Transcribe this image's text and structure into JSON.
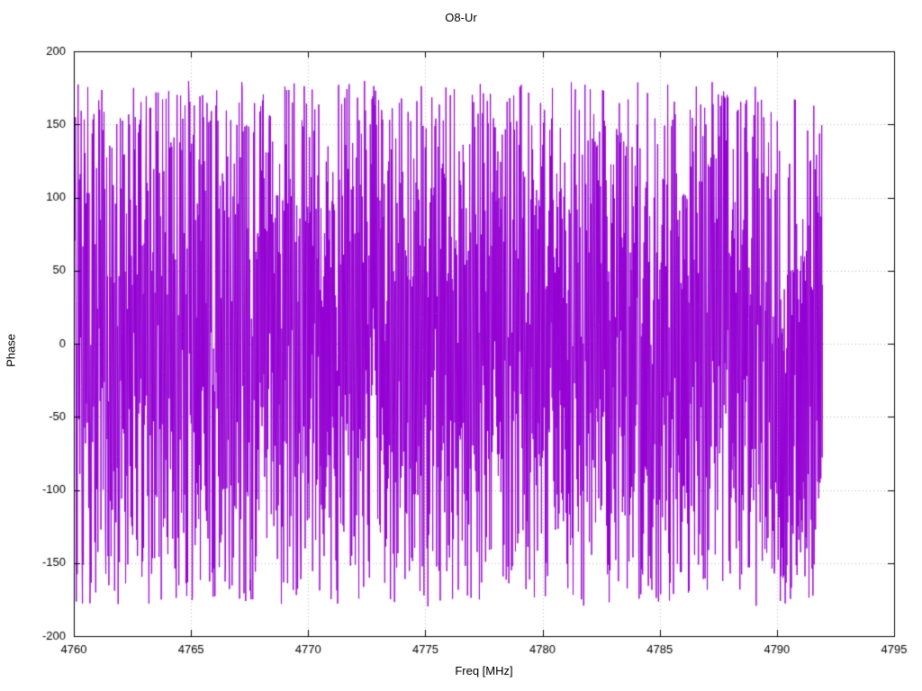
{
  "page": {
    "title": "O8-Ur"
  },
  "chart_data": {
    "type": "line",
    "title": "O8-Ur",
    "xlabel": "Freq [MHz]",
    "ylabel": "Phase",
    "xlim": [
      4760,
      4795
    ],
    "ylim": [
      -200,
      200
    ],
    "xticks": [
      4760,
      4765,
      4770,
      4775,
      4780,
      4785,
      4790,
      4795
    ],
    "yticks": [
      -200,
      -150,
      -100,
      -50,
      0,
      50,
      100,
      150,
      200
    ],
    "grid": "dotted",
    "legend": "none",
    "series": [
      {
        "name": "phase",
        "color": "#9400d3",
        "x_start": 4760.05,
        "x_end": 4791.95,
        "n_points": 1700,
        "model": "wrapped-phase-noise",
        "wrap_range": [
          -180,
          180
        ],
        "seed": 1234
      }
    ],
    "data_note": "Densely oscillating wrapped phase signal bouncing between approximately -180 and +180 degrees across 4760-4792 MHz; individual samples are not resolvable at screen resolution, so the series is regenerated pseudo-randomly from the stored seed and envelope parameters."
  },
  "style": {
    "plot_background": "#ffffff",
    "grid_color": "#b8b8b8",
    "border_color": "#000000",
    "tick_label_color": "#000000"
  }
}
